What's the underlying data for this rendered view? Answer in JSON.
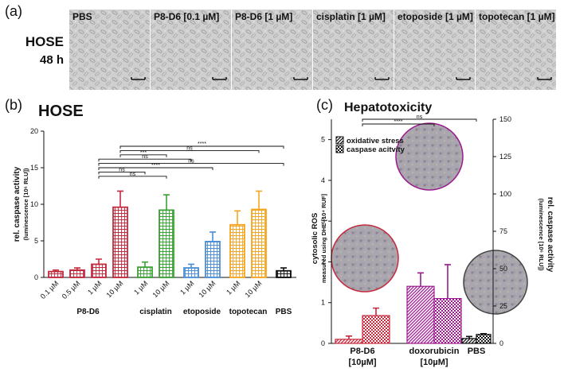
{
  "panel_a": {
    "label": "(a)",
    "cell_line": "HOSE",
    "time": "48 h",
    "images": [
      "PBS",
      "P8-D6 [0.1 µM]",
      "P8-D6 [1 µM]",
      "cisplatin [1 µM]",
      "etoposide [1 µM]",
      "topotecan [1 µM]"
    ]
  },
  "chart_data": [
    {
      "type": "bar",
      "panel_label": "(b)",
      "title": "HOSE",
      "ylabel": "rel. caspase activity",
      "ylabel_sub": "(luminescence [10⁶ RLU])",
      "ylim": [
        0,
        20
      ],
      "yticks": [
        0,
        5,
        10,
        15,
        20
      ],
      "series": [
        {
          "name": "P8-D6",
          "color": "#c42a3c",
          "categories": [
            "0.1 µM",
            "0.5 µM",
            "1 µM",
            "10 µM"
          ],
          "values": [
            0.8,
            1.0,
            1.8,
            9.6
          ],
          "errors": [
            0.2,
            0.3,
            0.7,
            2.2
          ]
        },
        {
          "name": "cisplatin",
          "color": "#3aa335",
          "categories": [
            "1 µM",
            "10 µM"
          ],
          "values": [
            1.4,
            9.2
          ],
          "errors": [
            0.7,
            2.1
          ]
        },
        {
          "name": "etoposide",
          "color": "#4a8fd8",
          "categories": [
            "1 µM",
            "10 µM"
          ],
          "values": [
            1.3,
            4.9
          ],
          "errors": [
            0.5,
            1.3
          ]
        },
        {
          "name": "topotecan",
          "color": "#f5a623",
          "categories": [
            "1 µM",
            "10 µM"
          ],
          "values": [
            7.2,
            9.3
          ],
          "errors": [
            1.9,
            2.5
          ]
        },
        {
          "name": "PBS",
          "color": "#111111",
          "categories": [
            null
          ],
          "values": [
            0.9
          ],
          "errors": [
            0.4
          ]
        }
      ],
      "significance": [
        {
          "from": 3,
          "to": 10,
          "label": "****"
        },
        {
          "from": 3,
          "to": 9,
          "label": "ns"
        },
        {
          "from": 3,
          "to": 5,
          "label": "***"
        },
        {
          "from": 2,
          "to": 6,
          "label": "ns"
        },
        {
          "from": 2,
          "to": 10,
          "label": "ns"
        },
        {
          "from": 2,
          "to": 7,
          "label": "****"
        },
        {
          "from": 2,
          "to": 4,
          "label": "ns"
        },
        {
          "from": 2,
          "to": 5,
          "label": "ns"
        }
      ]
    },
    {
      "type": "dual_bar",
      "panel_label": "(c)",
      "title": "Hepatotoxicity",
      "ylabel": "cytosolic ROS",
      "ylabel_sub": "measured using DHE [10⁴ RUF]",
      "y2label": "rel. caspase activity",
      "y2label_sub": "(luminescence [10⁶ RLU])",
      "ylim": [
        0,
        5.5
      ],
      "yticks": [
        0,
        1,
        2,
        3,
        4,
        5
      ],
      "y2lim": [
        0,
        150
      ],
      "y2ticks": [
        0,
        25,
        50,
        75,
        100,
        125,
        150
      ],
      "categories": [
        "P8-D6",
        "doxorubicin",
        "PBS"
      ],
      "category_notes": [
        "[10µM]",
        "[10µM]",
        null
      ],
      "colors": [
        "#c42a3c",
        "#9b1b8f",
        "#111111"
      ],
      "series": [
        {
          "name": "oxidative stress",
          "pattern": "stripes",
          "values": [
            0.1,
            1.4,
            0.12
          ],
          "errors": [
            0.08,
            0.33,
            0.05
          ]
        },
        {
          "name": "caspase acitvity",
          "pattern": "checker",
          "axis": "y2",
          "values": [
            18.6,
            30,
            6
          ],
          "errors": [
            5,
            22.7,
            0.5
          ]
        }
      ],
      "significance": [
        {
          "from": 0,
          "to": 2,
          "label": "ns"
        },
        {
          "from": 0,
          "to": 1,
          "label": "****"
        }
      ]
    }
  ]
}
